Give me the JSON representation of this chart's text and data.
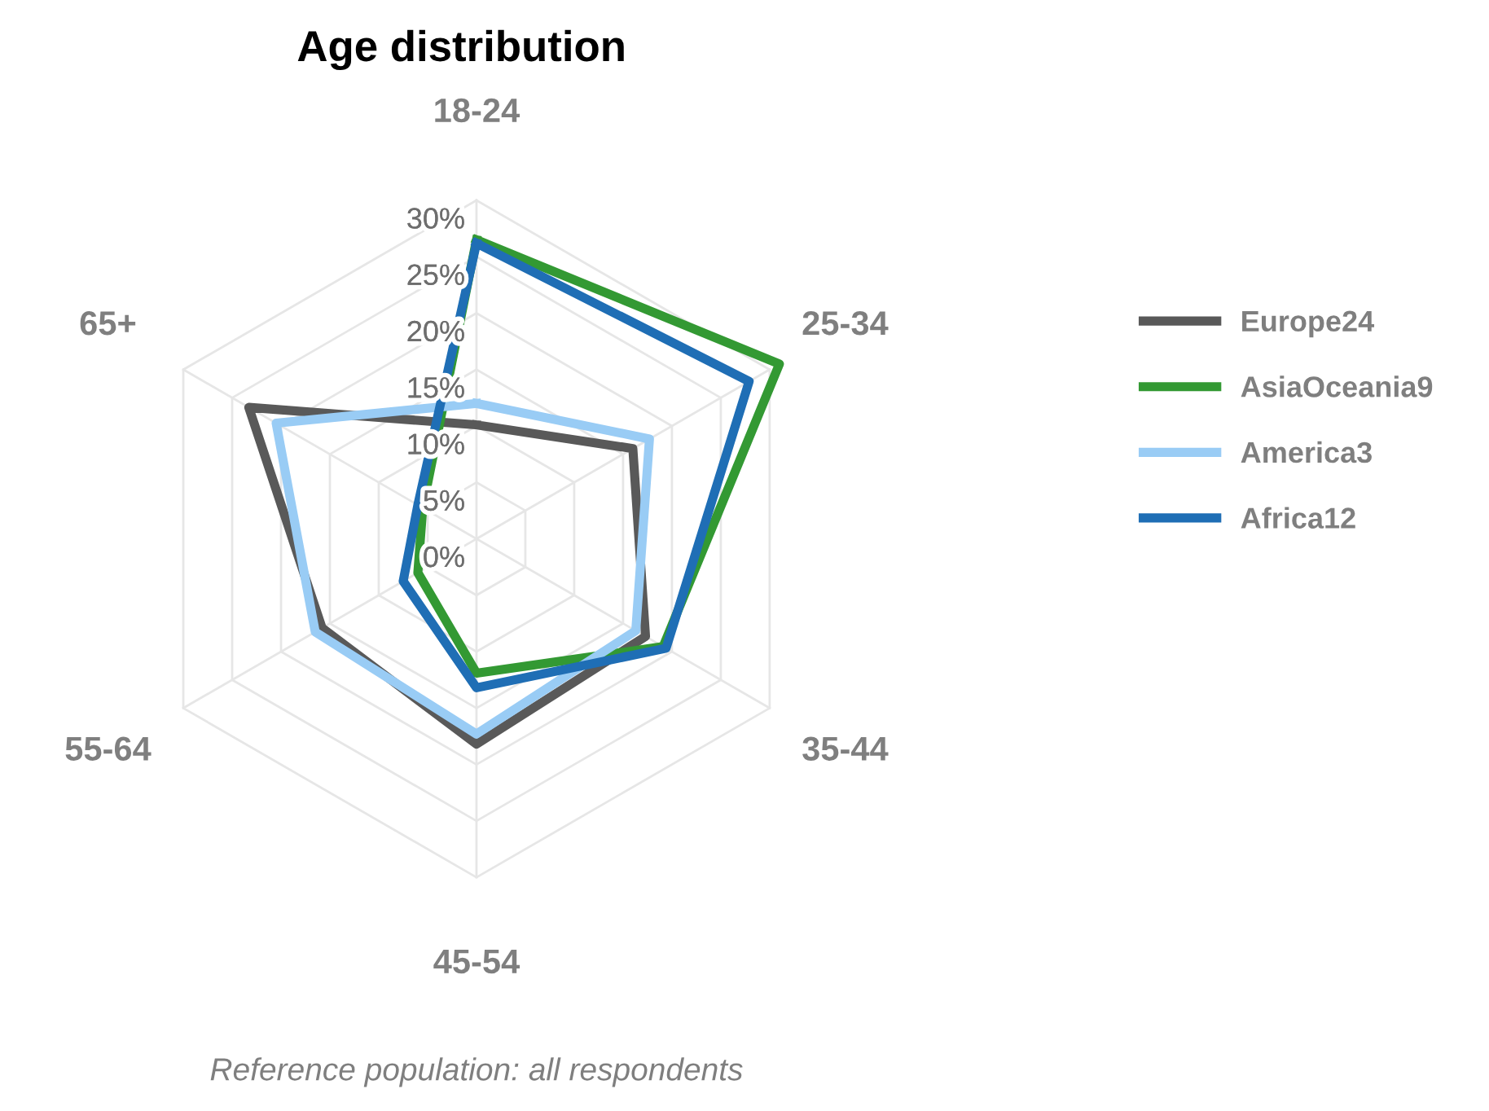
{
  "chart_data": {
    "type": "radar",
    "title": "Age distribution",
    "categories": [
      "18-24",
      "25-34",
      "35-44",
      "45-54",
      "55-64",
      "65+"
    ],
    "series": [
      {
        "name": "Europe24",
        "color": "#595959",
        "values": [
          10.1,
          16.0,
          17.3,
          18.2,
          15.8,
          23.3
        ]
      },
      {
        "name": "AsiaOceania9",
        "color": "#339933",
        "values": [
          26.5,
          31.0,
          19.1,
          11.9,
          6.0,
          5.5
        ]
      },
      {
        "name": "America3",
        "color": "#99ccf5",
        "values": [
          12.0,
          17.7,
          16.3,
          17.3,
          16.5,
          20.5
        ]
      },
      {
        "name": "Africa12",
        "color": "#1f6eb5",
        "values": [
          26.2,
          27.9,
          19.4,
          13.2,
          7.5,
          6.0
        ]
      }
    ],
    "ylim": [
      0,
      32
    ],
    "yticks": [
      {
        "value": 0,
        "label": "0%"
      },
      {
        "value": 5,
        "label": "5%"
      },
      {
        "value": 10,
        "label": "10%"
      },
      {
        "value": 15,
        "label": "15%"
      },
      {
        "value": 20,
        "label": "20%"
      },
      {
        "value": 25,
        "label": "25%"
      },
      {
        "value": 30,
        "label": "30%"
      }
    ],
    "grid": true,
    "legend": "right",
    "marker": "none",
    "line_style": "solid",
    "annotations": [
      "Reference population: all respondents"
    ]
  }
}
